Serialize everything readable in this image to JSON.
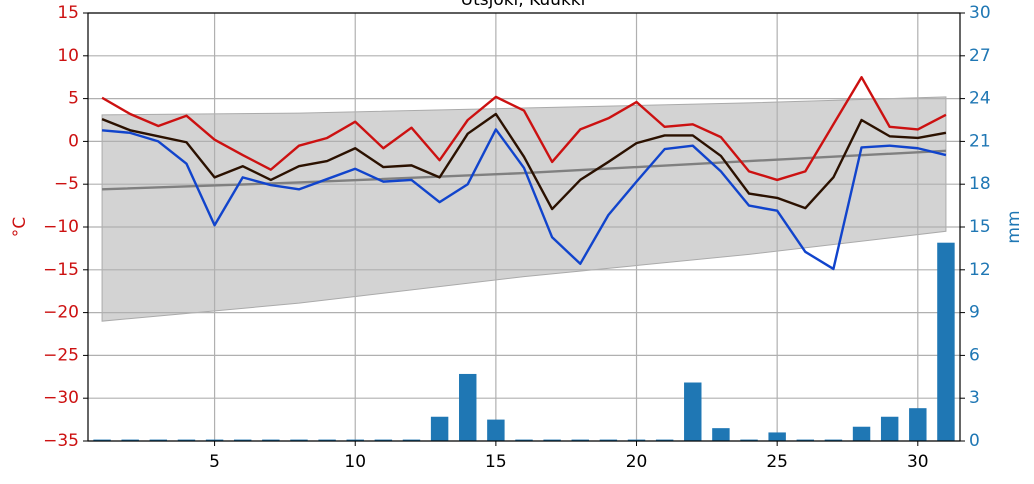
{
  "chart_data": {
    "type": "combo",
    "title": "Utsjoki, Kuukki",
    "ylabel": "°C",
    "y2label": "mm",
    "xlim": [
      0.5,
      31.5
    ],
    "xticks": [
      5,
      10,
      15,
      20,
      25,
      30
    ],
    "ylim": [
      -35,
      15
    ],
    "yticks": [
      15,
      10,
      5,
      0,
      {
        "value": -5,
        "label": "−5"
      },
      {
        "value": -10,
        "label": "−10"
      },
      {
        "value": -15,
        "label": "−15"
      },
      {
        "value": -20,
        "label": "−20"
      },
      {
        "value": -25,
        "label": "−25"
      },
      {
        "value": -30,
        "label": "−30"
      },
      {
        "value": -35,
        "label": "−35"
      }
    ],
    "y2lim": [
      0,
      30
    ],
    "y2ticks": [
      0,
      3,
      6,
      9,
      12,
      15,
      18,
      21,
      24,
      27,
      30
    ],
    "grid": true,
    "series": [
      {
        "type": "band",
        "color": "#d3d3d3",
        "x": [
          1,
          8,
          16,
          24,
          31
        ],
        "lower": [
          -21.0,
          -18.9,
          -15.8,
          -13.2,
          -10.5
        ],
        "upper": [
          3.1,
          3.3,
          3.9,
          4.5,
          5.2
        ]
      },
      {
        "type": "line",
        "color": "#808080",
        "x": [
          1,
          8,
          16,
          24,
          31
        ],
        "values": [
          -5.6,
          -4.8,
          -3.7,
          -2.3,
          -1.1
        ]
      },
      {
        "type": "bar",
        "axis": "y2",
        "color": "#1f77b4",
        "x": [
          1,
          2,
          3,
          4,
          5,
          6,
          7,
          8,
          9,
          10,
          11,
          12,
          13,
          14,
          15,
          16,
          17,
          18,
          19,
          20,
          21,
          22,
          23,
          24,
          25,
          26,
          27,
          28,
          29,
          30,
          31
        ],
        "values": [
          0.1,
          0.1,
          0.1,
          0.1,
          0.1,
          0.1,
          0.1,
          0.1,
          0.1,
          0.1,
          0.1,
          0.1,
          1.7,
          4.7,
          1.5,
          0.1,
          0.1,
          0.1,
          0.1,
          0.1,
          0.1,
          4.1,
          0.9,
          0.1,
          0.6,
          0.1,
          0.1,
          1.0,
          1.7,
          2.3,
          13.9
        ]
      },
      {
        "type": "line",
        "color": "#cc1111",
        "x": [
          1,
          2,
          3,
          4,
          5,
          6,
          7,
          8,
          9,
          10,
          11,
          12,
          13,
          14,
          15,
          16,
          17,
          18,
          19,
          20,
          21,
          22,
          23,
          24,
          25,
          26,
          27,
          28,
          29,
          30,
          31
        ],
        "values": [
          5.1,
          3.2,
          1.8,
          3.0,
          0.2,
          -1.6,
          -3.3,
          -0.5,
          0.4,
          2.3,
          -0.8,
          1.6,
          -2.2,
          2.5,
          5.2,
          3.6,
          -2.4,
          1.4,
          2.7,
          4.6,
          1.7,
          2.0,
          0.5,
          -3.5,
          -4.5,
          -3.5,
          2.0,
          7.5,
          1.7,
          1.4,
          3.1
        ]
      },
      {
        "type": "line",
        "color": "#2b1100",
        "x": [
          1,
          2,
          3,
          4,
          5,
          6,
          7,
          8,
          9,
          10,
          11,
          12,
          13,
          14,
          15,
          16,
          17,
          18,
          19,
          20,
          21,
          22,
          23,
          24,
          25,
          26,
          27,
          28,
          29,
          30,
          31
        ],
        "values": [
          2.6,
          1.3,
          0.6,
          -0.1,
          -4.2,
          -2.9,
          -4.5,
          -2.9,
          -2.3,
          -0.8,
          -3.0,
          -2.8,
          -4.2,
          0.9,
          3.2,
          -1.8,
          -7.9,
          -4.5,
          -2.4,
          -0.2,
          0.7,
          0.7,
          -1.7,
          -6.1,
          -6.6,
          -7.8,
          -4.2,
          2.5,
          0.6,
          0.4,
          1.0
        ]
      },
      {
        "type": "line",
        "color": "#1144cc",
        "x": [
          1,
          2,
          3,
          4,
          5,
          6,
          7,
          8,
          9,
          10,
          11,
          12,
          13,
          14,
          15,
          16,
          17,
          18,
          19,
          20,
          21,
          22,
          23,
          24,
          25,
          26,
          27,
          28,
          29,
          30,
          31
        ],
        "values": [
          1.3,
          1.0,
          0.0,
          -2.6,
          -9.8,
          -4.2,
          -5.1,
          -5.6,
          -4.4,
          -3.2,
          -4.7,
          -4.5,
          -7.1,
          -5.0,
          1.4,
          -3.1,
          -11.2,
          -14.3,
          -8.6,
          -4.7,
          -0.9,
          -0.5,
          -3.5,
          -7.5,
          -8.1,
          -12.9,
          -14.9,
          -0.7,
          -0.5,
          -0.8,
          -1.6
        ]
      }
    ]
  }
}
